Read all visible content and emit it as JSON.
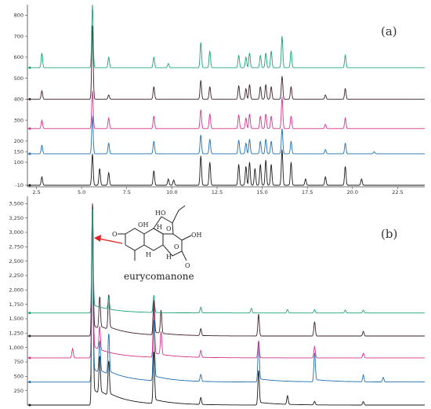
{
  "chart_data": [
    {
      "type": "line",
      "panel_label": "(a)",
      "xlim": [
        2.0,
        24.0
      ],
      "ylim": [
        -10,
        850
      ],
      "x_ticks": [
        "2.5",
        "5.0",
        "7.5",
        "10.0",
        "12.5",
        "15.0",
        "17.5",
        "20.0",
        "22.5"
      ],
      "x_tick_values": [
        2.5,
        5.0,
        7.5,
        10.0,
        12.5,
        15.0,
        17.5,
        20.0,
        22.5
      ],
      "y_ticks": [
        "-10",
        "100",
        "150",
        "200",
        "300",
        "400",
        "500",
        "600",
        "700",
        "800"
      ],
      "y_tick_values": [
        -10,
        100,
        150,
        200,
        300,
        400,
        500,
        600,
        700,
        800
      ],
      "grid": false,
      "series": [
        {
          "color": "#1a1a1a",
          "baseline": -10,
          "peaks": [
            [
              2.8,
              40
            ],
            [
              5.6,
              150
            ],
            [
              6.0,
              80
            ],
            [
              6.5,
              60
            ],
            [
              9.0,
              70
            ],
            [
              9.8,
              30
            ],
            [
              10.1,
              25
            ],
            [
              11.6,
              140
            ],
            [
              12.1,
              110
            ],
            [
              13.7,
              100
            ],
            [
              14.1,
              90
            ],
            [
              14.3,
              110
            ],
            [
              14.6,
              80
            ],
            [
              14.9,
              100
            ],
            [
              15.2,
              120
            ],
            [
              15.5,
              100
            ],
            [
              16.1,
              170
            ],
            [
              16.6,
              110
            ],
            [
              17.4,
              30
            ],
            [
              18.5,
              40
            ],
            [
              19.6,
              90
            ],
            [
              20.5,
              30
            ]
          ]
        },
        {
          "color": "#1f6fb2",
          "baseline": 140,
          "peaks": [
            [
              2.8,
              40
            ],
            [
              5.6,
              180
            ],
            [
              6.5,
              50
            ],
            [
              9.0,
              60
            ],
            [
              11.6,
              90
            ],
            [
              12.1,
              70
            ],
            [
              13.7,
              65
            ],
            [
              14.1,
              50
            ],
            [
              14.3,
              70
            ],
            [
              14.9,
              60
            ],
            [
              15.2,
              70
            ],
            [
              15.5,
              60
            ],
            [
              16.1,
              120
            ],
            [
              16.6,
              60
            ],
            [
              18.5,
              20
            ],
            [
              19.6,
              50
            ],
            [
              21.2,
              10
            ]
          ]
        },
        {
          "color": "#d6338e",
          "baseline": 260,
          "peaks": [
            [
              2.8,
              40
            ],
            [
              5.6,
              180
            ],
            [
              6.5,
              50
            ],
            [
              9.0,
              60
            ],
            [
              11.6,
              90
            ],
            [
              12.1,
              70
            ],
            [
              13.7,
              65
            ],
            [
              14.1,
              50
            ],
            [
              14.3,
              70
            ],
            [
              14.9,
              60
            ],
            [
              15.2,
              70
            ],
            [
              15.5,
              60
            ],
            [
              16.1,
              150
            ],
            [
              16.6,
              60
            ],
            [
              18.5,
              20
            ],
            [
              19.6,
              50
            ]
          ]
        },
        {
          "color": "#3d1f2a",
          "baseline": 400,
          "peaks": [
            [
              2.8,
              40
            ],
            [
              5.6,
              350
            ],
            [
              6.5,
              20
            ],
            [
              9.0,
              60
            ],
            [
              11.6,
              90
            ],
            [
              12.1,
              60
            ],
            [
              13.7,
              65
            ],
            [
              14.1,
              50
            ],
            [
              14.3,
              70
            ],
            [
              14.9,
              60
            ],
            [
              15.2,
              70
            ],
            [
              15.5,
              60
            ],
            [
              16.1,
              110
            ],
            [
              16.6,
              60
            ],
            [
              18.5,
              20
            ],
            [
              19.6,
              50
            ]
          ]
        },
        {
          "color": "#1aa37a",
          "baseline": 550,
          "peaks": [
            [
              2.8,
              70
            ],
            [
              5.6,
              300
            ],
            [
              6.5,
              50
            ],
            [
              9.0,
              50
            ],
            [
              9.8,
              20
            ],
            [
              11.6,
              120
            ],
            [
              12.1,
              80
            ],
            [
              13.7,
              60
            ],
            [
              14.1,
              50
            ],
            [
              14.3,
              70
            ],
            [
              14.9,
              60
            ],
            [
              15.2,
              70
            ],
            [
              15.5,
              80
            ],
            [
              16.1,
              150
            ],
            [
              16.6,
              80
            ],
            [
              19.6,
              60
            ]
          ]
        }
      ]
    },
    {
      "type": "line",
      "panel_label": "(b)",
      "xlim": [
        2.0,
        24.0
      ],
      "ylim": [
        0,
        3600
      ],
      "y_ticks": [
        "3,500",
        "3,250",
        "3,000",
        "2,750",
        "2,500",
        "2,250",
        "2,000",
        "1,750",
        "1,500",
        "1,250",
        "1,000",
        "750",
        "500",
        "250"
      ],
      "y_tick_values": [
        3500,
        3250,
        3000,
        2750,
        2500,
        2250,
        2000,
        1750,
        1500,
        1250,
        1000,
        750,
        500,
        250
      ],
      "grid": false,
      "annotation": "eurycomanone",
      "structure_labels": [
        "OH",
        "HO",
        "O",
        "O",
        "O",
        "O",
        "OH",
        "H",
        "H",
        "H"
      ],
      "series": [
        {
          "color": "#1a1a1a",
          "baseline": 0,
          "peaks": [
            [
              5.6,
              3500
            ],
            [
              6.0,
              650
            ],
            [
              6.5,
              600
            ],
            [
              9.0,
              900
            ],
            [
              11.6,
              120
            ],
            [
              14.8,
              600
            ],
            [
              16.4,
              150
            ],
            [
              17.9,
              60
            ],
            [
              20.6,
              60
            ]
          ]
        },
        {
          "color": "#1f6fb2",
          "baseline": 400,
          "peaks": [
            [
              5.6,
              2900
            ],
            [
              6.0,
              550
            ],
            [
              6.5,
              700
            ],
            [
              9.0,
              1050
            ],
            [
              11.6,
              120
            ],
            [
              14.8,
              700
            ],
            [
              17.9,
              500
            ],
            [
              20.6,
              120
            ],
            [
              21.7,
              80
            ]
          ]
        },
        {
          "color": "#d6338e",
          "baseline": 820,
          "peaks": [
            [
              4.5,
              160
            ],
            [
              5.6,
              2600
            ],
            [
              6.0,
              400
            ],
            [
              9.0,
              900
            ],
            [
              9.4,
              400
            ],
            [
              11.6,
              120
            ],
            [
              14.8,
              300
            ],
            [
              17.9,
              200
            ],
            [
              20.6,
              80
            ]
          ]
        },
        {
          "color": "#3d1f2a",
          "baseline": 1200,
          "peaks": [
            [
              5.6,
              2300
            ],
            [
              6.0,
              550
            ],
            [
              6.5,
              600
            ],
            [
              9.0,
              600
            ],
            [
              9.4,
              400
            ],
            [
              11.6,
              120
            ],
            [
              14.8,
              380
            ],
            [
              17.9,
              250
            ],
            [
              20.6,
              80
            ]
          ]
        },
        {
          "color": "#1aa37a",
          "baseline": 1600,
          "peaks": [
            [
              5.6,
              1800
            ],
            [
              6.5,
              200
            ],
            [
              9.0,
              300
            ],
            [
              11.6,
              100
            ],
            [
              14.4,
              80
            ],
            [
              16.4,
              60
            ],
            [
              17.9,
              60
            ],
            [
              19.6,
              50
            ],
            [
              20.6,
              50
            ]
          ]
        }
      ]
    }
  ]
}
